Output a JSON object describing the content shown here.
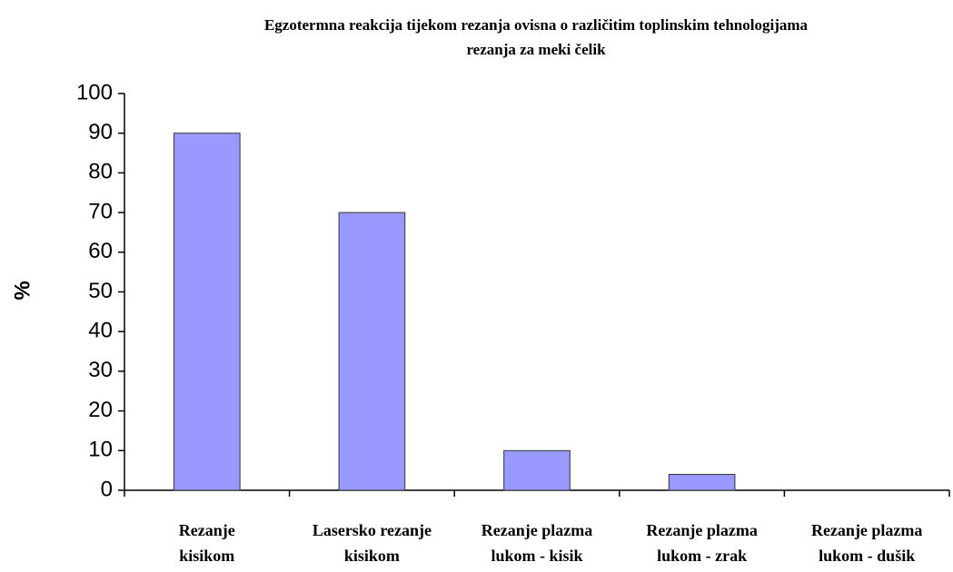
{
  "chart_data": {
    "type": "bar",
    "title": "Egzotermna reakcija tijekom rezanja ovisna o različitim toplinskim tehnologijama\nrezanja za meki čelik",
    "ylabel": "%",
    "categories": [
      "Rezanje\nkisikom",
      "Lasersko rezanje\nkisikom",
      "Rezanje plazma\nlukom - kisik",
      "Rezanje plazma\nlukom - zrak",
      "Rezanje plazma\nlukom - dušik"
    ],
    "values": [
      90,
      70,
      10,
      4,
      0
    ],
    "color": "#9999ff",
    "ylim": [
      0,
      100
    ],
    "yticks": [
      0,
      10,
      20,
      30,
      40,
      50,
      60,
      70,
      80,
      90,
      100
    ]
  }
}
